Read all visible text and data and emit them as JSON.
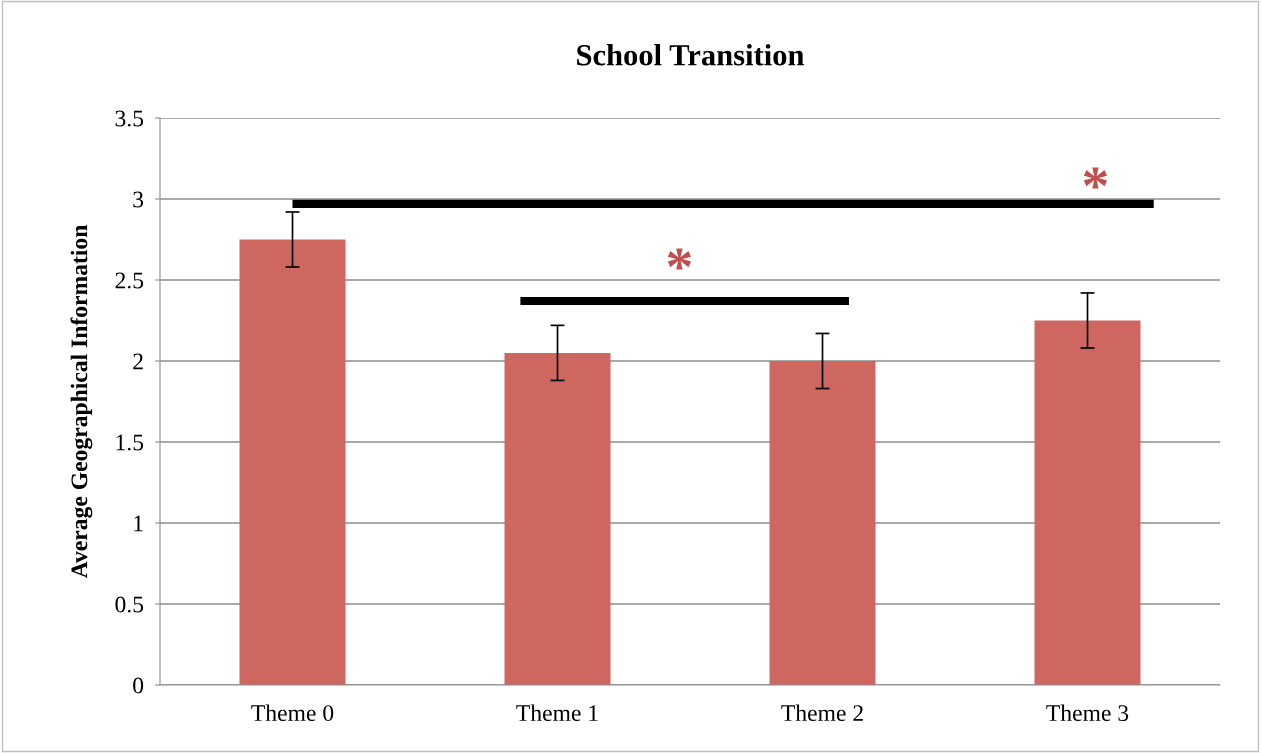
{
  "chart_data": {
    "type": "bar",
    "title": "School Transition",
    "ylabel": "Average Geographical Information",
    "categories": [
      "Theme 0",
      "Theme 1",
      "Theme 2",
      "Theme 3"
    ],
    "values": [
      2.75,
      2.05,
      2.0,
      2.25
    ],
    "errors": [
      0.17,
      0.17,
      0.17,
      0.17
    ],
    "color": "#cd6760",
    "ylim": [
      0,
      3.5
    ],
    "yticks": [
      0,
      0.5,
      1,
      1.5,
      2,
      2.5,
      3,
      3.5
    ],
    "grid": "y",
    "annotations": [
      "*",
      "*"
    ]
  }
}
